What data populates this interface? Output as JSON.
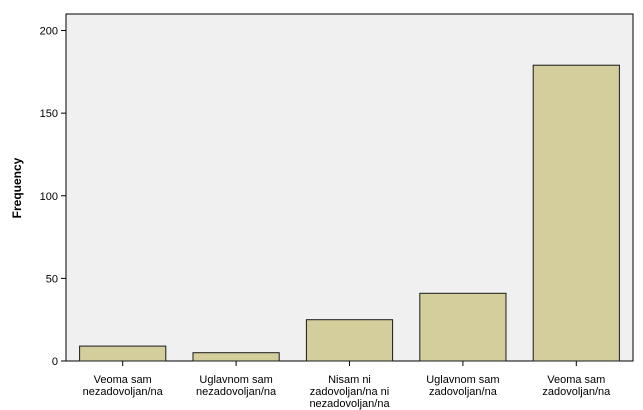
{
  "chart_data": {
    "type": "bar",
    "ylabel": "Frequency",
    "xlabel": "",
    "categories": [
      [
        "Veoma sam",
        "nezadovoljan/na"
      ],
      [
        "Uglavnom sam",
        "nezadovoljan/na"
      ],
      [
        "Nisam ni",
        "zadovoljan/na ni",
        "nezadovoljan/na"
      ],
      [
        "Uglavnom sam",
        "zadovoljan/na"
      ],
      [
        "Veoma sam",
        "zadovoljan/na"
      ]
    ],
    "values": [
      9,
      5,
      25,
      41,
      179
    ],
    "ylim": [
      0,
      210
    ],
    "yticks": [
      0,
      50,
      100,
      150,
      200
    ],
    "grid": false,
    "colors": {
      "bar_fill": "#d3ce9b",
      "bar_stroke": "#1a1a1a",
      "plot_background": "#f0f0f0",
      "axis": "#000000"
    }
  }
}
